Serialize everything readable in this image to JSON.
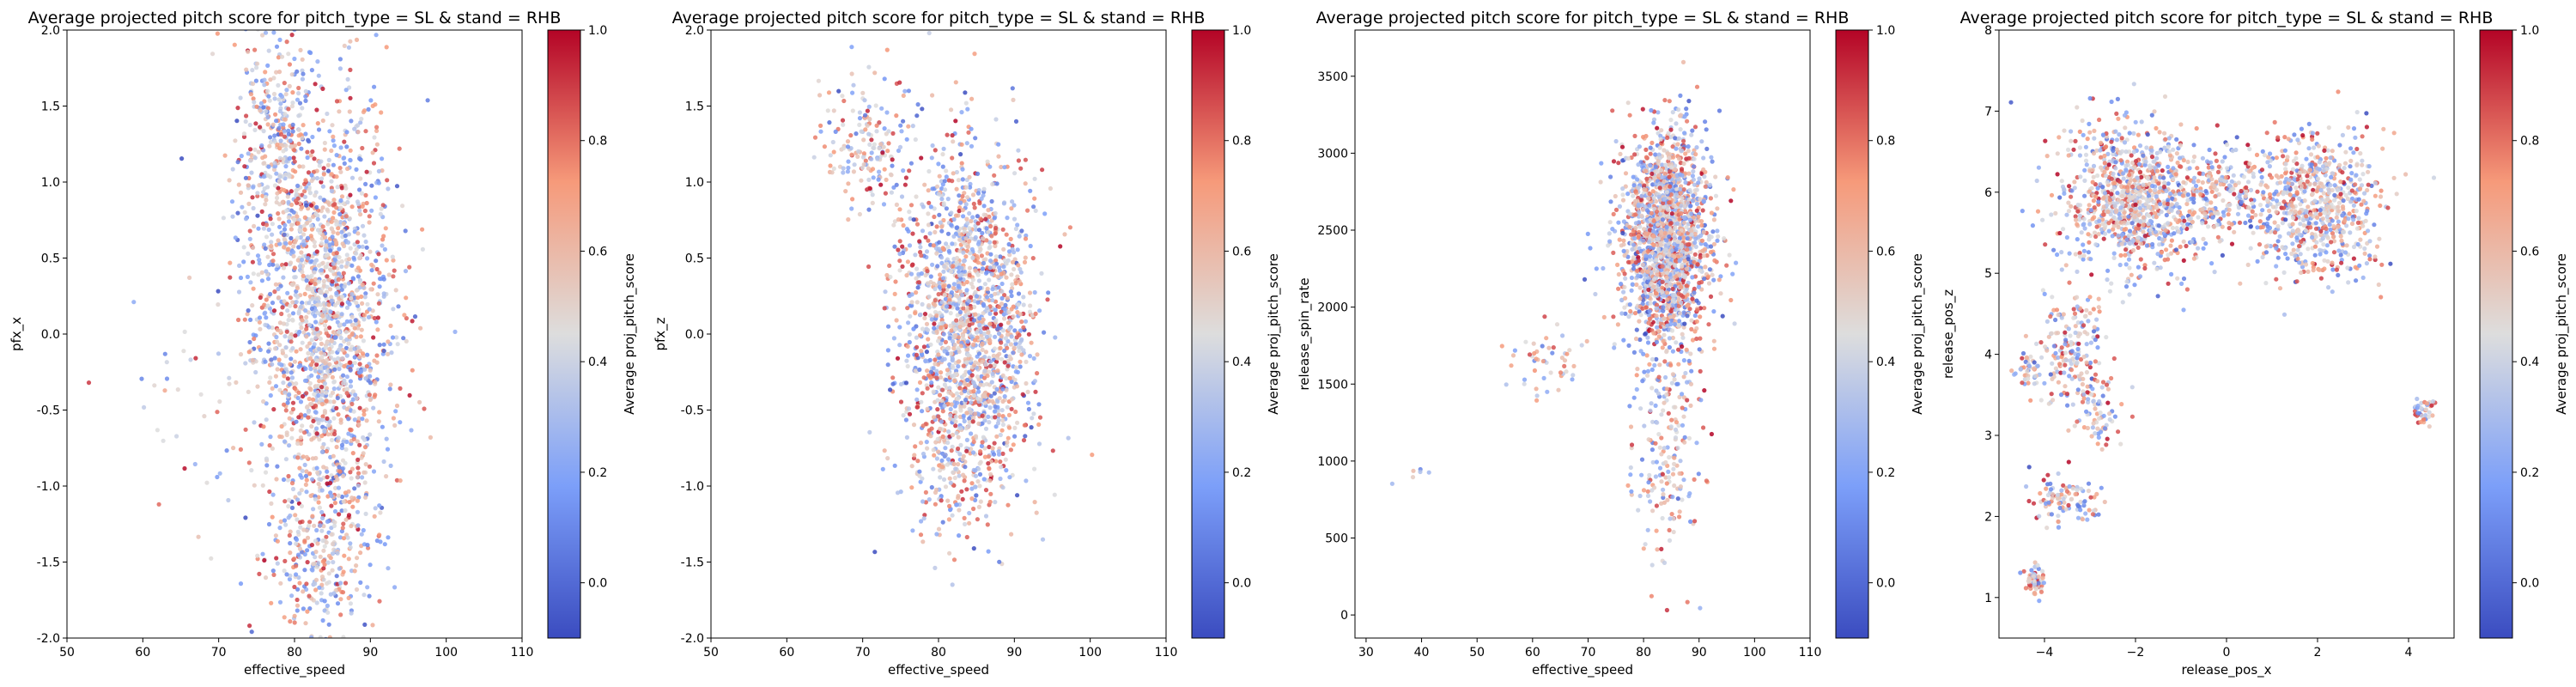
{
  "figure": {
    "background": "#ffffff",
    "colormap": "coolwarm"
  },
  "chart_data": [
    {
      "type": "scatter",
      "title": "Average projected pitch score for pitch_type = SL & stand = RHB",
      "xlabel": "effective_speed",
      "ylabel": "pfx_x",
      "xlim": [
        50,
        110
      ],
      "ylim": [
        -2.0,
        2.0
      ],
      "xticks": [
        "50",
        "60",
        "70",
        "80",
        "90",
        "100",
        "110"
      ],
      "yticks": [
        "-2.0",
        "-1.5",
        "-1.0",
        "-0.5",
        "0.0",
        "0.5",
        "1.0",
        "1.5",
        "2.0"
      ],
      "colorbar": {
        "label": "Average proj_pitch_score",
        "range": [
          -0.1,
          1.0
        ],
        "ticks": [
          "0.0",
          "0.2",
          "0.4",
          "0.6",
          "0.8",
          "1.0"
        ]
      },
      "clusters": [
        {
          "cx": 84,
          "cy": 0.1,
          "sx": 4.5,
          "sy": 0.75,
          "n": 1800
        },
        {
          "cx": 77,
          "cy": 1.2,
          "sx": 2.5,
          "sy": 0.4,
          "n": 350
        },
        {
          "cx": 84,
          "cy": -1.4,
          "sx": 3.0,
          "sy": 0.3,
          "n": 250
        },
        {
          "cx": 67,
          "cy": -0.4,
          "sx": 5.0,
          "sy": 0.35,
          "n": 40
        }
      ]
    },
    {
      "type": "scatter",
      "title": "Average projected pitch score for pitch_type = SL & stand = RHB",
      "xlabel": "effective_speed",
      "ylabel": "pfx_z",
      "xlim": [
        50,
        110
      ],
      "ylim": [
        -2.0,
        2.0
      ],
      "xticks": [
        "50",
        "60",
        "70",
        "80",
        "90",
        "100",
        "110"
      ],
      "yticks": [
        "-2.0",
        "-1.5",
        "-1.0",
        "-0.5",
        "0.0",
        "0.5",
        "1.0",
        "1.5",
        "2.0"
      ],
      "colorbar": {
        "label": "Average proj_pitch_score",
        "range": [
          -0.1,
          1.0
        ],
        "ticks": [
          "0.0",
          "0.2",
          "0.4",
          "0.6",
          "0.8",
          "1.0"
        ]
      },
      "clusters": [
        {
          "cx": 84,
          "cy": 0.1,
          "sx": 4.3,
          "sy": 0.55,
          "n": 1700
        },
        {
          "cx": 71,
          "cy": 1.25,
          "sx": 3.0,
          "sy": 0.25,
          "n": 180
        },
        {
          "cx": 82,
          "cy": -0.9,
          "sx": 3.5,
          "sy": 0.25,
          "n": 150
        }
      ]
    },
    {
      "type": "scatter",
      "title": "Average projected pitch score for pitch_type = SL & stand = RHB",
      "xlabel": "effective_speed",
      "ylabel": "release_spin_rate",
      "xlim": [
        28,
        110
      ],
      "ylim": [
        -150,
        3800
      ],
      "xticks": [
        "30",
        "40",
        "50",
        "60",
        "70",
        "80",
        "90",
        "100",
        "110"
      ],
      "yticks": [
        "0",
        "500",
        "1000",
        "1500",
        "2000",
        "2500",
        "3000",
        "3500"
      ],
      "colorbar": {
        "label": "Average proj_pitch_score",
        "range": [
          -0.1,
          1.0
        ],
        "ticks": [
          "0.0",
          "0.2",
          "0.4",
          "0.6",
          "0.8",
          "1.0"
        ]
      },
      "clusters": [
        {
          "cx": 84,
          "cy": 2450,
          "sx": 4.0,
          "sy": 350,
          "n": 1800
        },
        {
          "cx": 84,
          "cy": 1100,
          "sx": 3.0,
          "sy": 400,
          "n": 200
        },
        {
          "cx": 63,
          "cy": 1650,
          "sx": 4.0,
          "sy": 120,
          "n": 50
        },
        {
          "cx": 38,
          "cy": 950,
          "sx": 3.0,
          "sy": 60,
          "n": 6
        }
      ]
    },
    {
      "type": "scatter",
      "title": "Average projected pitch score for pitch_type = SL & stand = RHB",
      "xlabel": "release_pos_x",
      "ylabel": "release_pos_z",
      "xlim": [
        -5,
        5
      ],
      "ylim": [
        0.5,
        8.0
      ],
      "xticks": [
        "−4",
        "−2",
        "0",
        "2",
        "4"
      ],
      "yticks": [
        "1",
        "2",
        "3",
        "4",
        "5",
        "6",
        "7",
        "8"
      ],
      "colorbar": {
        "label": "Average proj_pitch_score",
        "range": [
          -0.1,
          1.0
        ],
        "ticks": [
          "0.0",
          "0.2",
          "0.4",
          "0.6",
          "0.8",
          "1.0"
        ]
      },
      "clusters": [
        {
          "cx": -2.0,
          "cy": 5.9,
          "sx": 0.8,
          "sy": 0.45,
          "n": 1000
        },
        {
          "cx": 2.0,
          "cy": 5.8,
          "sx": 0.7,
          "sy": 0.45,
          "n": 700
        },
        {
          "cx": 0.0,
          "cy": 6.0,
          "sx": 0.5,
          "sy": 0.3,
          "n": 200
        },
        {
          "cx": -3.4,
          "cy": 4.1,
          "sx": 0.35,
          "sy": 0.4,
          "n": 180
        },
        {
          "cx": -2.8,
          "cy": 3.3,
          "sx": 0.25,
          "sy": 0.2,
          "n": 70
        },
        {
          "cx": -3.5,
          "cy": 2.2,
          "sx": 0.4,
          "sy": 0.15,
          "n": 100
        },
        {
          "cx": -4.2,
          "cy": 1.2,
          "sx": 0.12,
          "sy": 0.1,
          "n": 60
        },
        {
          "cx": 4.3,
          "cy": 3.3,
          "sx": 0.12,
          "sy": 0.1,
          "n": 40
        },
        {
          "cx": -4.4,
          "cy": 3.8,
          "sx": 0.15,
          "sy": 0.1,
          "n": 40
        }
      ]
    }
  ]
}
